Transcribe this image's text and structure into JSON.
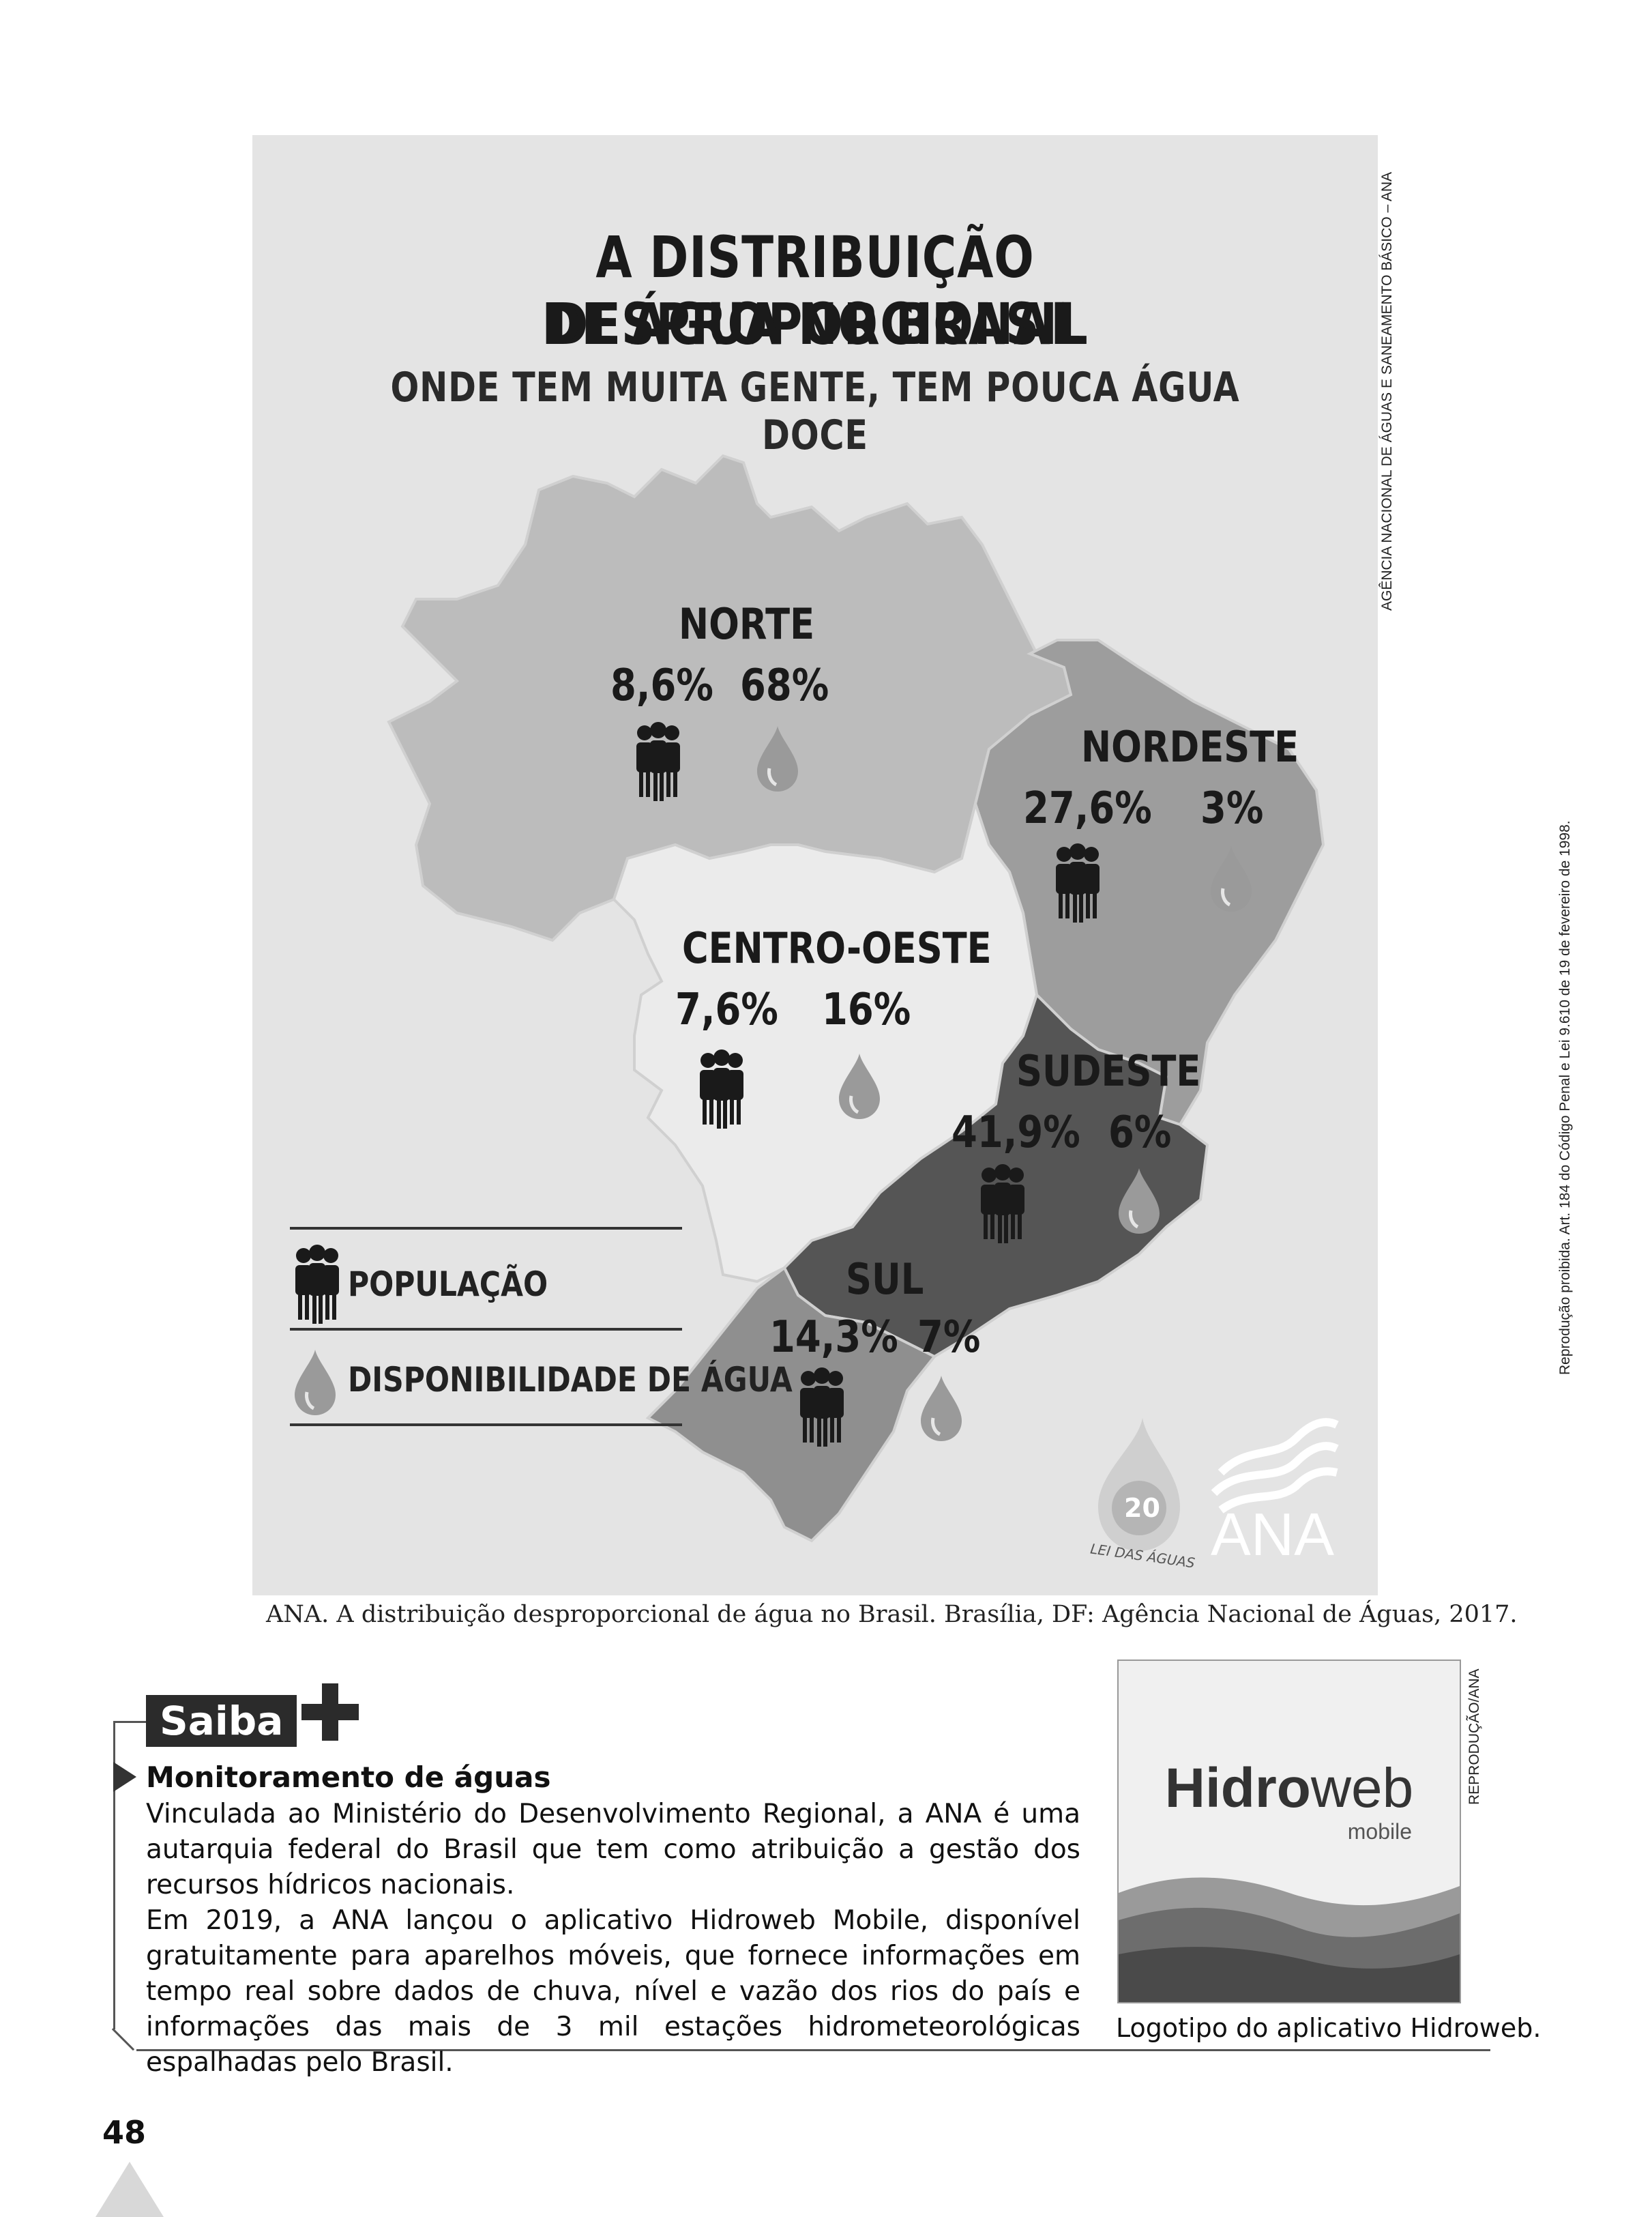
{
  "figure": {
    "title_line1": "A DISTRIBUIÇÃO DESPROPORCIONAL",
    "title_line2": "DE ÁGUA NO BRASIL",
    "subtitle": "ONDE TEM MUITA GENTE, TEM POUCA ÁGUA DOCE",
    "regions": [
      {
        "name": "NORTE",
        "population": "8,6%",
        "water": "68%"
      },
      {
        "name": "NORDESTE",
        "population": "27,6%",
        "water": "3%"
      },
      {
        "name": "CENTRO-OESTE",
        "population": "7,6%",
        "water": "16%"
      },
      {
        "name": "SUDESTE",
        "population": "41,9%",
        "water": "6%"
      },
      {
        "name": "SUL",
        "population": "14,3%",
        "water": "7%"
      }
    ],
    "legend": {
      "population": "POPULAÇÃO",
      "water": "DISPONIBILIDADE DE ÁGUA"
    },
    "seal_number": "20",
    "seal_text": "LEI DAS ÁGUAS",
    "ana_logo": "ANA",
    "credit_vertical": "AGÊNCIA NACIONAL DE ÁGUAS E SANEAMENTO BÁSICO – ANA"
  },
  "colors": {
    "norte": "#bcbcbc",
    "nordeste": "#9d9d9d",
    "centro_oeste": "#ebebeb",
    "sudeste": "#555555",
    "sul": "#8f8f8f",
    "background": "#e4e4e4"
  },
  "caption": "ANA. A distribuição desproporcional de água no Brasil. Brasília, DF: Agência Nacional de Águas, 2017.",
  "legal_notice": "Reprodução proibida. Art. 184 do Código Penal e Lei 9.610 de 19 de fevereiro de 1998.",
  "saiba": {
    "tab_label": "Saiba",
    "heading": "Monitoramento de águas",
    "paragraph1": "Vinculada ao Ministério do Desenvolvimento Regional, a ANA é uma autarquia federal do Brasil que tem como atribuição a gestão dos recursos hídricos nacionais.",
    "paragraph2": "Em 2019, a ANA lançou o aplicativo Hidroweb Mobile, disponível gratuitamente para aparelhos móveis, que fornece informações em tempo real sobre dados de chuva, nível e vazão dos rios do país e informações das mais de 3 mil estações hidrometeorológicas espalhadas pelo Brasil."
  },
  "logo": {
    "word_bold": "Hidro",
    "word_light": "web",
    "sub": "mobile",
    "credit": "REPRODUÇÃO/ANA",
    "caption": "Logotipo do aplicativo Hidroweb."
  },
  "page_number": "48"
}
